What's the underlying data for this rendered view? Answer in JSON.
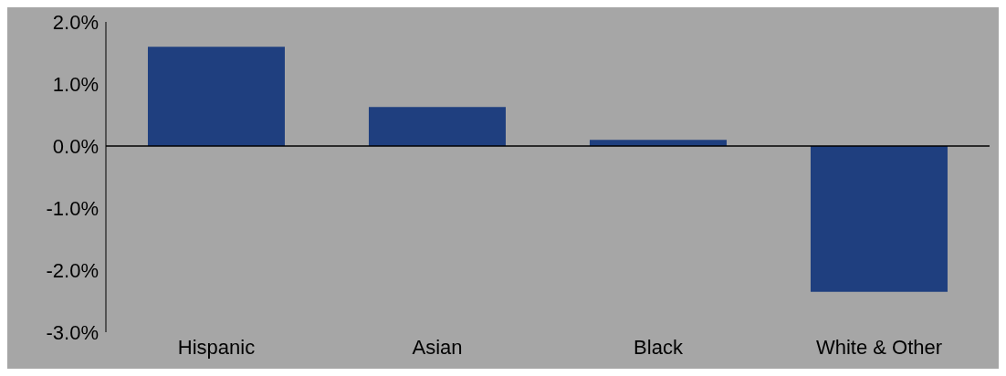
{
  "chart_data": {
    "type": "bar",
    "categories": [
      "Hispanic",
      "Asian",
      "Black",
      "White & Other"
    ],
    "series": [
      {
        "color": "#1f3f7f",
        "values": [
          1.6,
          0.63,
          0.1,
          -2.35
        ]
      }
    ],
    "ylim": [
      -3,
      2
    ],
    "yticks": [
      {
        "value": -3,
        "label": "-3.0%"
      },
      {
        "value": -2,
        "label": "-2.0%"
      },
      {
        "value": -1,
        "label": "-1.0%"
      },
      {
        "value": 0,
        "label": "0.0%"
      },
      {
        "value": 1,
        "label": "1.0%"
      },
      {
        "value": 2,
        "label": "2.0%"
      }
    ],
    "legend": false
  }
}
